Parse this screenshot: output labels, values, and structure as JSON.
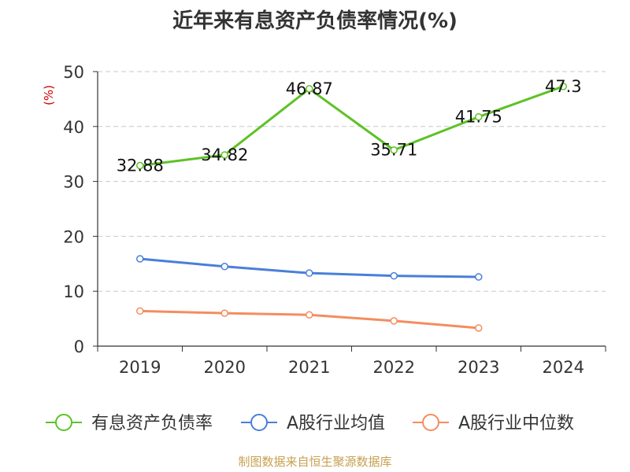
{
  "title": "近年来有息资产负债率情况(%)",
  "unit": "(%)",
  "footer": "制图数据来自恒生聚源数据库",
  "chart_data": {
    "type": "line",
    "categories": [
      "2019",
      "2020",
      "2021",
      "2022",
      "2023",
      "2024"
    ],
    "ylim": [
      0,
      50
    ],
    "yticks": [
      0,
      10,
      20,
      30,
      40,
      50
    ],
    "grid": true,
    "legend_position": "bottom",
    "series": [
      {
        "name": "有息资产负债率",
        "color": "#5ec226",
        "values": [
          32.88,
          34.82,
          46.87,
          35.71,
          41.75,
          47.3
        ],
        "labels": [
          "32.88",
          "34.82",
          "46.87",
          "35.71",
          "41.75",
          "47.3"
        ]
      },
      {
        "name": "A股行业均值",
        "color": "#4a7fd8",
        "values": [
          15.9,
          14.5,
          13.3,
          12.8,
          12.6,
          null
        ]
      },
      {
        "name": "A股行业中位数",
        "color": "#f48d5e",
        "values": [
          6.4,
          6.0,
          5.7,
          4.6,
          3.3,
          null
        ]
      }
    ]
  }
}
